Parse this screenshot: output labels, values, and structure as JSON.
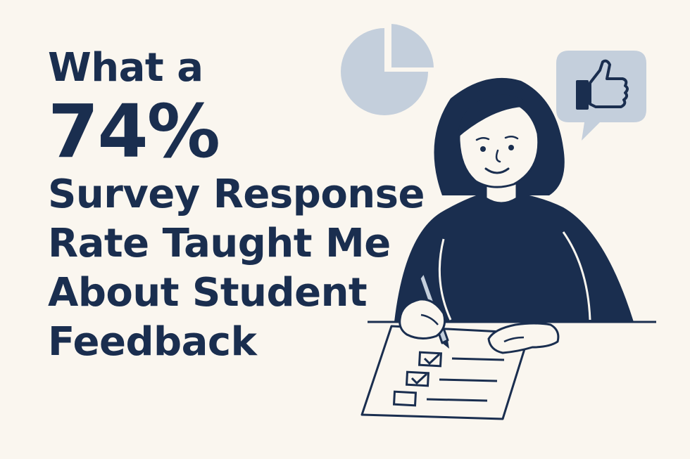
{
  "headline": {
    "line1": "What a",
    "line2": "74%",
    "line3": "Survey Response",
    "line4": "Rate Taught Me",
    "line5": "About Student",
    "line6": "Feedback"
  },
  "colors": {
    "background": "#faf6ef",
    "navy": "#1a2e4f",
    "light_blue": "#c4cfdc",
    "skin": "#faf6ef"
  },
  "icons": [
    "pie-chart-icon",
    "speech-bubble-icon",
    "thumbs-up-icon",
    "pencil-icon",
    "checkbox-icon"
  ]
}
